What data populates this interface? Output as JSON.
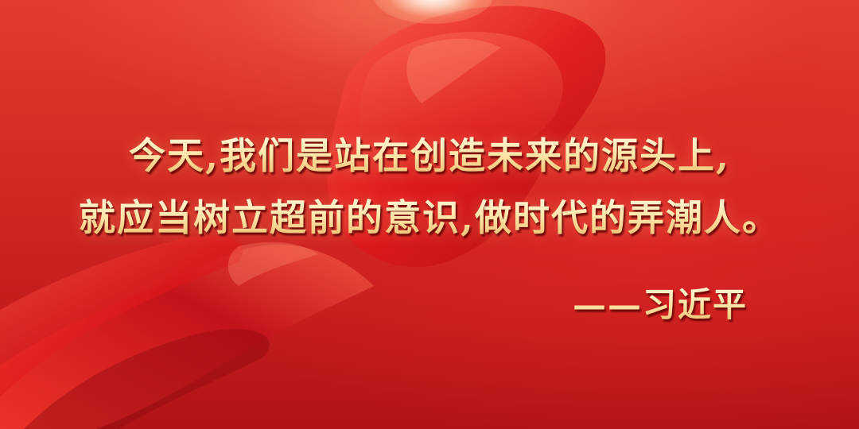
{
  "quote": {
    "line1": "今天,我们是站在创造未来的源头上,",
    "line2": "就应当树立超前的意识,做时代的弄潮人。"
  },
  "attribution": "——习近平",
  "colors": {
    "background": "#d42a24",
    "text_gold": "#fce4a6",
    "ribbon": "#e0181c"
  },
  "decorations": [
    "red-silk-ribbon",
    "light-flare"
  ]
}
